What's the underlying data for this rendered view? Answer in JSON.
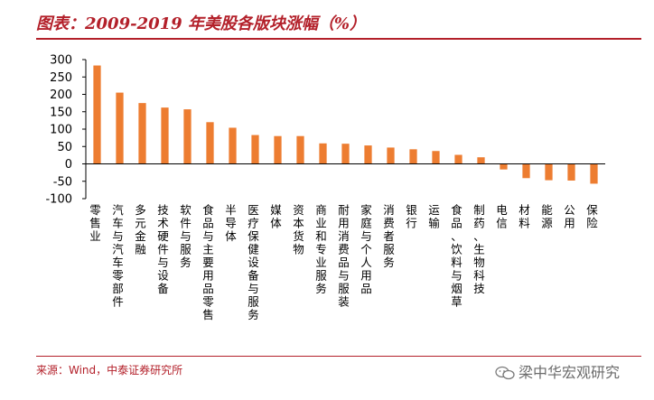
{
  "header": {
    "title": "图表：2009-2019 年美股各版块涨幅（%）"
  },
  "footer": {
    "source": "来源：Wind，中泰证券研究所",
    "watermark": "梁中华宏观研究"
  },
  "colors": {
    "accent": "#b3202a",
    "bar": "#ed7d31"
  },
  "chart_data": {
    "type": "bar",
    "title": "图表：2009-2019 年美股各版块涨幅（%）",
    "xlabel": "",
    "ylabel": "",
    "ylim": [
      -100,
      300
    ],
    "yticks": [
      -100,
      -50,
      0,
      50,
      100,
      150,
      200,
      250,
      300
    ],
    "categories": [
      "零售业",
      "汽车与汽车零部件",
      "多元金融",
      "技术硬件与设备",
      "软件与服务",
      "食品与主要用品零售",
      "半导体",
      "医疗保健设备与服务",
      "媒体",
      "资本货物",
      "商业和专业服务",
      "耐用消费品与服装",
      "家庭与个人用品",
      "消费者服务",
      "银行",
      "运输",
      "食品、饮料与烟草",
      "制药、生物科技",
      "电信",
      "材料",
      "能源",
      "公用",
      "保险"
    ],
    "values": [
      283,
      205,
      175,
      162,
      157,
      120,
      104,
      83,
      80,
      80,
      59,
      58,
      53,
      47,
      42,
      37,
      26,
      19,
      -16,
      -41,
      -47,
      -48,
      -57
    ]
  }
}
